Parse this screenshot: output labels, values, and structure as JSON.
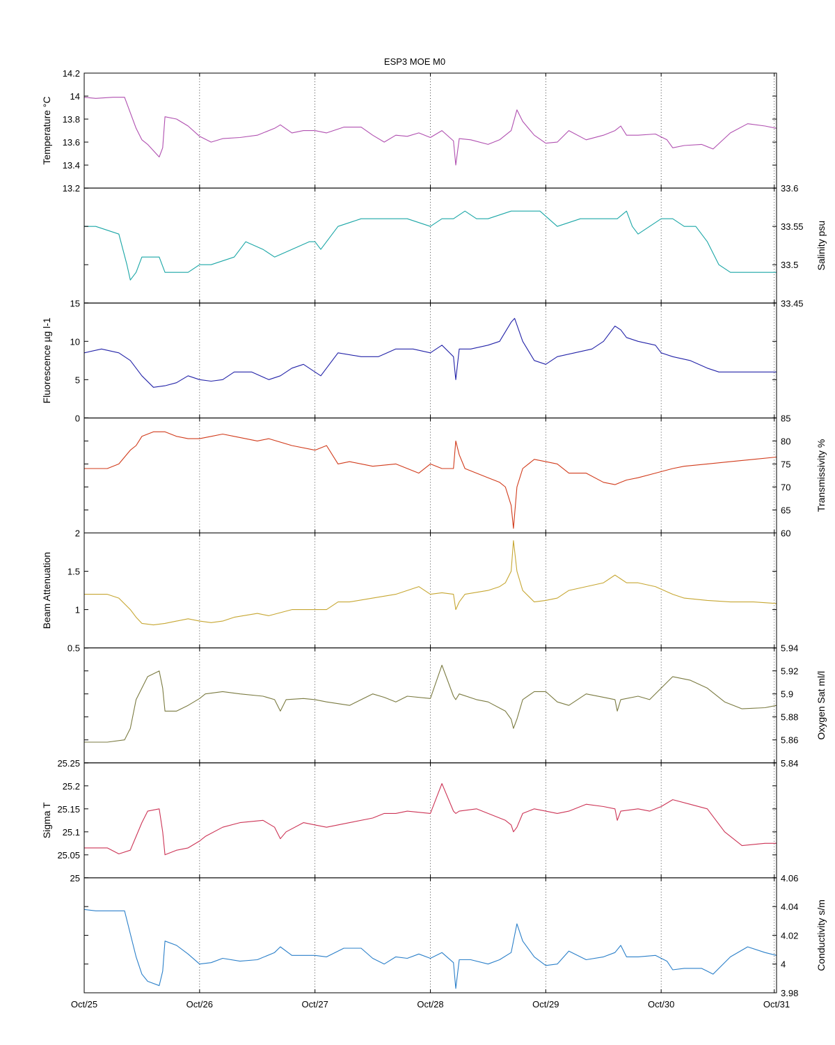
{
  "figure": {
    "title": "ESP3 MOE   M0",
    "x_ticks": [
      "Oct/25",
      "Oct/26",
      "Oct/27",
      "Oct/28",
      "Oct/29",
      "Oct/30",
      "Oct/31"
    ]
  },
  "chart_data": [
    {
      "type": "line",
      "ylabel": "Temperature °C",
      "axis_side": "left",
      "color": "#b04fb0",
      "ylim": [
        13.2,
        14.2
      ],
      "yticks": [
        13.2,
        13.4,
        13.6,
        13.8,
        14,
        14.2
      ],
      "ytick_labels": [
        "13.2",
        "13.4",
        "13.6",
        "13.8",
        "14",
        "14.2"
      ],
      "xlim": [
        0,
        6
      ],
      "x": [
        0,
        0.1,
        0.25,
        0.35,
        0.45,
        0.5,
        0.55,
        0.65,
        0.68,
        0.7,
        0.8,
        0.9,
        1.0,
        1.1,
        1.2,
        1.35,
        1.5,
        1.65,
        1.7,
        1.8,
        1.9,
        2.0,
        2.1,
        2.25,
        2.4,
        2.5,
        2.6,
        2.7,
        2.8,
        2.9,
        3.0,
        3.1,
        3.2,
        3.22,
        3.25,
        3.35,
        3.5,
        3.6,
        3.7,
        3.75,
        3.8,
        3.9,
        4.0,
        4.1,
        4.2,
        4.35,
        4.5,
        4.6,
        4.65,
        4.7,
        4.8,
        4.95,
        5.05,
        5.1,
        5.2,
        5.35,
        5.45,
        5.6,
        5.75,
        5.9,
        6.0
      ],
      "series": [
        {
          "values": [
            13.99,
            13.98,
            13.99,
            13.99,
            13.72,
            13.62,
            13.58,
            13.47,
            13.55,
            13.82,
            13.8,
            13.74,
            13.65,
            13.6,
            13.63,
            13.64,
            13.66,
            13.72,
            13.75,
            13.68,
            13.7,
            13.7,
            13.68,
            13.73,
            13.73,
            13.66,
            13.6,
            13.66,
            13.65,
            13.68,
            13.64,
            13.7,
            13.61,
            13.4,
            13.63,
            13.62,
            13.58,
            13.62,
            13.7,
            13.88,
            13.78,
            13.66,
            13.59,
            13.6,
            13.7,
            13.62,
            13.66,
            13.7,
            13.74,
            13.66,
            13.66,
            13.67,
            13.62,
            13.55,
            13.57,
            13.58,
            13.54,
            13.68,
            13.76,
            13.74,
            13.72
          ]
        }
      ]
    },
    {
      "type": "line",
      "ylabel": "Salinity psu",
      "axis_side": "right",
      "color": "#1aa6a6",
      "ylim": [
        33.45,
        33.6
      ],
      "yticks": [
        33.45,
        33.5,
        33.55,
        33.6
      ],
      "ytick_labels": [
        "33.45",
        "33.5",
        "33.55",
        "33.6"
      ],
      "xlim": [
        0,
        6
      ],
      "x": [
        0,
        0.1,
        0.3,
        0.37,
        0.4,
        0.45,
        0.5,
        0.55,
        0.65,
        0.7,
        0.75,
        0.9,
        1.0,
        1.1,
        1.3,
        1.4,
        1.55,
        1.65,
        1.8,
        1.95,
        2.0,
        2.05,
        2.2,
        2.4,
        2.6,
        2.8,
        3.0,
        3.1,
        3.2,
        3.3,
        3.4,
        3.5,
        3.7,
        3.85,
        3.95,
        4.1,
        4.3,
        4.5,
        4.62,
        4.7,
        4.75,
        4.8,
        4.9,
        5.0,
        5.1,
        5.2,
        5.3,
        5.4,
        5.5,
        5.6,
        5.75,
        5.9,
        6.0
      ],
      "series": [
        {
          "values": [
            33.55,
            33.55,
            33.54,
            33.5,
            33.48,
            33.49,
            33.51,
            33.51,
            33.51,
            33.49,
            33.49,
            33.49,
            33.5,
            33.5,
            33.51,
            33.53,
            33.52,
            33.51,
            33.52,
            33.53,
            33.53,
            33.52,
            33.55,
            33.56,
            33.56,
            33.56,
            33.55,
            33.56,
            33.56,
            33.57,
            33.56,
            33.56,
            33.57,
            33.57,
            33.57,
            33.55,
            33.56,
            33.56,
            33.56,
            33.57,
            33.55,
            33.54,
            33.55,
            33.56,
            33.56,
            33.55,
            33.55,
            33.53,
            33.5,
            33.49,
            33.49,
            33.49,
            33.49
          ]
        }
      ]
    },
    {
      "type": "line",
      "ylabel": "Fluorescence µg l-1",
      "axis_side": "left",
      "color": "#2222a8",
      "ylim": [
        0,
        15
      ],
      "yticks": [
        0,
        5,
        10,
        15
      ],
      "ytick_labels": [
        "0",
        "5",
        "10",
        "15"
      ],
      "xlim": [
        0,
        6
      ],
      "x": [
        0,
        0.15,
        0.3,
        0.4,
        0.5,
        0.6,
        0.7,
        0.8,
        0.9,
        1.0,
        1.1,
        1.2,
        1.3,
        1.45,
        1.6,
        1.7,
        1.8,
        1.9,
        2.0,
        2.05,
        2.2,
        2.4,
        2.55,
        2.7,
        2.85,
        3.0,
        3.1,
        3.2,
        3.22,
        3.25,
        3.35,
        3.5,
        3.6,
        3.7,
        3.73,
        3.8,
        3.9,
        4.0,
        4.1,
        4.25,
        4.4,
        4.5,
        4.6,
        4.65,
        4.7,
        4.8,
        4.95,
        5.0,
        5.1,
        5.25,
        5.4,
        5.5,
        5.6,
        5.75,
        5.9,
        6.0
      ],
      "series": [
        {
          "values": [
            8.5,
            9.0,
            8.5,
            7.5,
            5.5,
            4.0,
            4.2,
            4.6,
            5.5,
            5.0,
            4.8,
            5.0,
            6.0,
            6.0,
            5.0,
            5.5,
            6.5,
            7.0,
            6.0,
            5.5,
            8.5,
            8.0,
            8.0,
            9.0,
            9.0,
            8.5,
            9.5,
            8.0,
            5.0,
            9.0,
            9.0,
            9.5,
            10.0,
            12.5,
            13.0,
            10.0,
            7.5,
            7.0,
            8.0,
            8.5,
            9.0,
            10.0,
            12.0,
            11.5,
            10.5,
            10.0,
            9.5,
            8.5,
            8.0,
            7.5,
            6.5,
            6.0,
            6.0,
            6.0,
            6.0,
            6.0
          ]
        }
      ]
    },
    {
      "type": "line",
      "ylabel": "Transmissivity %",
      "axis_side": "right",
      "color": "#d13a1a",
      "ylim": [
        60,
        85
      ],
      "yticks": [
        60,
        65,
        70,
        75,
        80,
        85
      ],
      "ytick_labels": [
        "60",
        "65",
        "70",
        "75",
        "80",
        "85"
      ],
      "xlim": [
        0,
        6
      ],
      "x": [
        0,
        0.2,
        0.3,
        0.4,
        0.45,
        0.5,
        0.6,
        0.7,
        0.8,
        0.9,
        1.0,
        1.1,
        1.2,
        1.3,
        1.5,
        1.6,
        1.8,
        2.0,
        2.1,
        2.2,
        2.3,
        2.5,
        2.7,
        2.9,
        3.0,
        3.1,
        3.2,
        3.22,
        3.25,
        3.3,
        3.5,
        3.6,
        3.65,
        3.7,
        3.72,
        3.75,
        3.8,
        3.9,
        4.0,
        4.1,
        4.2,
        4.35,
        4.5,
        4.6,
        4.65,
        4.7,
        4.8,
        4.95,
        5.1,
        5.2,
        5.4,
        5.6,
        5.8,
        6.0
      ],
      "series": [
        {
          "values": [
            74,
            74,
            75,
            78,
            79,
            81,
            82,
            82,
            81,
            80.5,
            80.5,
            81,
            81.5,
            81,
            80,
            80.5,
            79,
            78,
            79,
            75,
            75.5,
            74.5,
            75,
            73,
            75,
            74,
            74,
            80,
            77,
            74,
            72,
            71,
            70,
            66,
            61,
            70,
            74,
            76,
            75.5,
            75,
            73,
            73,
            71,
            70.5,
            71,
            71.5,
            72,
            73,
            74,
            74.5,
            75,
            75.5,
            76,
            76.5
          ]
        }
      ]
    },
    {
      "type": "line",
      "ylabel": "Beam Attenuation",
      "axis_side": "left",
      "color": "#c6a631",
      "ylim": [
        0.5,
        2
      ],
      "yticks": [
        0.5,
        1,
        1.5,
        2
      ],
      "ytick_labels": [
        "0.5",
        "1",
        "1.5",
        "2"
      ],
      "xlim": [
        0,
        6
      ],
      "x": [
        0,
        0.2,
        0.3,
        0.4,
        0.45,
        0.5,
        0.6,
        0.7,
        0.8,
        0.9,
        1.0,
        1.1,
        1.2,
        1.3,
        1.5,
        1.6,
        1.8,
        2.0,
        2.1,
        2.2,
        2.3,
        2.5,
        2.7,
        2.9,
        3.0,
        3.1,
        3.2,
        3.22,
        3.25,
        3.3,
        3.5,
        3.6,
        3.65,
        3.7,
        3.72,
        3.75,
        3.8,
        3.9,
        4.0,
        4.1,
        4.2,
        4.35,
        4.5,
        4.6,
        4.65,
        4.7,
        4.8,
        4.95,
        5.1,
        5.2,
        5.4,
        5.6,
        5.8,
        6.0
      ],
      "series": [
        {
          "values": [
            1.2,
            1.2,
            1.15,
            1.0,
            0.9,
            0.82,
            0.8,
            0.82,
            0.85,
            0.88,
            0.85,
            0.83,
            0.85,
            0.9,
            0.95,
            0.92,
            1.0,
            1.0,
            1.0,
            1.1,
            1.1,
            1.15,
            1.2,
            1.3,
            1.2,
            1.22,
            1.2,
            1.0,
            1.1,
            1.2,
            1.25,
            1.3,
            1.35,
            1.5,
            1.9,
            1.5,
            1.25,
            1.1,
            1.12,
            1.15,
            1.25,
            1.3,
            1.35,
            1.45,
            1.4,
            1.35,
            1.35,
            1.3,
            1.2,
            1.15,
            1.12,
            1.1,
            1.1,
            1.08
          ]
        }
      ]
    },
    {
      "type": "line",
      "ylabel": "Oxygen Sat ml/l",
      "axis_side": "right",
      "color": "#7a7a40",
      "ylim": [
        5.84,
        5.94
      ],
      "yticks": [
        5.84,
        5.86,
        5.88,
        5.9,
        5.92,
        5.94
      ],
      "ytick_labels": [
        "5.84",
        "5.86",
        "5.88",
        "5.9",
        "5.92",
        "5.94"
      ],
      "xlim": [
        0,
        6
      ],
      "x": [
        0,
        0.2,
        0.35,
        0.4,
        0.45,
        0.5,
        0.55,
        0.65,
        0.68,
        0.7,
        0.8,
        0.9,
        1.0,
        1.05,
        1.2,
        1.35,
        1.55,
        1.65,
        1.7,
        1.75,
        1.9,
        2.0,
        2.1,
        2.3,
        2.5,
        2.6,
        2.7,
        2.8,
        3.0,
        3.1,
        3.2,
        3.22,
        3.25,
        3.4,
        3.5,
        3.65,
        3.7,
        3.72,
        3.75,
        3.8,
        3.9,
        4.0,
        4.1,
        4.2,
        4.35,
        4.5,
        4.6,
        4.62,
        4.65,
        4.8,
        4.9,
        5.0,
        5.1,
        5.25,
        5.4,
        5.55,
        5.7,
        5.9,
        6.0
      ],
      "series": [
        {
          "values": [
            5.858,
            5.858,
            5.86,
            5.87,
            5.895,
            5.905,
            5.915,
            5.92,
            5.905,
            5.885,
            5.885,
            5.89,
            5.896,
            5.9,
            5.902,
            5.9,
            5.898,
            5.895,
            5.885,
            5.895,
            5.896,
            5.895,
            5.893,
            5.89,
            5.9,
            5.897,
            5.893,
            5.898,
            5.896,
            5.925,
            5.898,
            5.895,
            5.9,
            5.895,
            5.893,
            5.885,
            5.878,
            5.87,
            5.878,
            5.895,
            5.902,
            5.902,
            5.893,
            5.89,
            5.9,
            5.897,
            5.895,
            5.885,
            5.895,
            5.898,
            5.895,
            5.905,
            5.915,
            5.912,
            5.905,
            5.893,
            5.887,
            5.888,
            5.89
          ]
        }
      ]
    },
    {
      "type": "line",
      "ylabel": "Sigma T",
      "axis_side": "left",
      "color": "#cc3355",
      "ylim": [
        25,
        25.25
      ],
      "yticks": [
        25,
        25.05,
        25.1,
        25.15,
        25.2,
        25.25
      ],
      "ytick_labels": [
        "25",
        "25.05",
        "25.1",
        "25.15",
        "25.2",
        "25.25"
      ],
      "xlim": [
        0,
        6
      ],
      "x": [
        0,
        0.2,
        0.3,
        0.4,
        0.45,
        0.5,
        0.55,
        0.65,
        0.68,
        0.7,
        0.8,
        0.9,
        1.0,
        1.05,
        1.2,
        1.35,
        1.55,
        1.65,
        1.7,
        1.75,
        1.9,
        2.0,
        2.1,
        2.3,
        2.5,
        2.6,
        2.7,
        2.8,
        3.0,
        3.1,
        3.2,
        3.22,
        3.25,
        3.4,
        3.5,
        3.65,
        3.7,
        3.72,
        3.75,
        3.8,
        3.9,
        4.0,
        4.1,
        4.2,
        4.35,
        4.5,
        4.6,
        4.62,
        4.65,
        4.8,
        4.9,
        5.0,
        5.1,
        5.25,
        5.4,
        5.55,
        5.7,
        5.9,
        6.0
      ],
      "series": [
        {
          "values": [
            25.065,
            25.065,
            25.052,
            25.06,
            25.09,
            25.12,
            25.145,
            25.15,
            25.1,
            25.05,
            25.06,
            25.065,
            25.08,
            25.09,
            25.11,
            25.12,
            25.125,
            25.11,
            25.085,
            25.1,
            25.12,
            25.115,
            25.11,
            25.12,
            25.13,
            25.14,
            25.14,
            25.145,
            25.14,
            25.205,
            25.145,
            25.14,
            25.145,
            25.15,
            25.14,
            25.125,
            25.115,
            25.1,
            25.11,
            25.14,
            25.15,
            25.145,
            25.14,
            25.145,
            25.16,
            25.155,
            25.15,
            25.125,
            25.145,
            25.15,
            25.145,
            25.155,
            25.17,
            25.16,
            25.15,
            25.1,
            25.07,
            25.075,
            25.075
          ]
        }
      ]
    },
    {
      "type": "line",
      "ylabel": "Conductivity s/m",
      "axis_side": "right",
      "color": "#2a7fc9",
      "ylim": [
        3.98,
        4.06
      ],
      "yticks": [
        3.98,
        4.0,
        4.02,
        4.04,
        4.06
      ],
      "ytick_labels": [
        "3.98",
        "4",
        "4.02",
        "4.04",
        "4.06"
      ],
      "xlim": [
        0,
        6
      ],
      "x": [
        0,
        0.1,
        0.25,
        0.35,
        0.45,
        0.5,
        0.55,
        0.65,
        0.68,
        0.7,
        0.8,
        0.9,
        1.0,
        1.1,
        1.2,
        1.35,
        1.5,
        1.65,
        1.7,
        1.8,
        1.9,
        2.0,
        2.1,
        2.25,
        2.4,
        2.5,
        2.6,
        2.7,
        2.8,
        2.9,
        3.0,
        3.1,
        3.2,
        3.22,
        3.25,
        3.35,
        3.5,
        3.6,
        3.7,
        3.75,
        3.8,
        3.9,
        4.0,
        4.1,
        4.2,
        4.35,
        4.5,
        4.6,
        4.65,
        4.7,
        4.8,
        4.95,
        5.05,
        5.1,
        5.2,
        5.35,
        5.45,
        5.6,
        5.75,
        5.9,
        6.0
      ],
      "series": [
        {
          "values": [
            4.038,
            4.037,
            4.037,
            4.037,
            4.005,
            3.993,
            3.988,
            3.985,
            3.995,
            4.016,
            4.013,
            4.007,
            4.0,
            4.001,
            4.004,
            4.002,
            4.003,
            4.008,
            4.012,
            4.006,
            4.006,
            4.006,
            4.005,
            4.011,
            4.011,
            4.004,
            4.0,
            4.005,
            4.004,
            4.007,
            4.004,
            4.008,
            4.001,
            3.983,
            4.003,
            4.003,
            4.0,
            4.003,
            4.008,
            4.028,
            4.016,
            4.005,
            3.999,
            4.0,
            4.009,
            4.003,
            4.005,
            4.008,
            4.013,
            4.005,
            4.005,
            4.006,
            4.002,
            3.996,
            3.997,
            3.997,
            3.993,
            4.005,
            4.012,
            4.008,
            4.006
          ]
        }
      ]
    }
  ]
}
